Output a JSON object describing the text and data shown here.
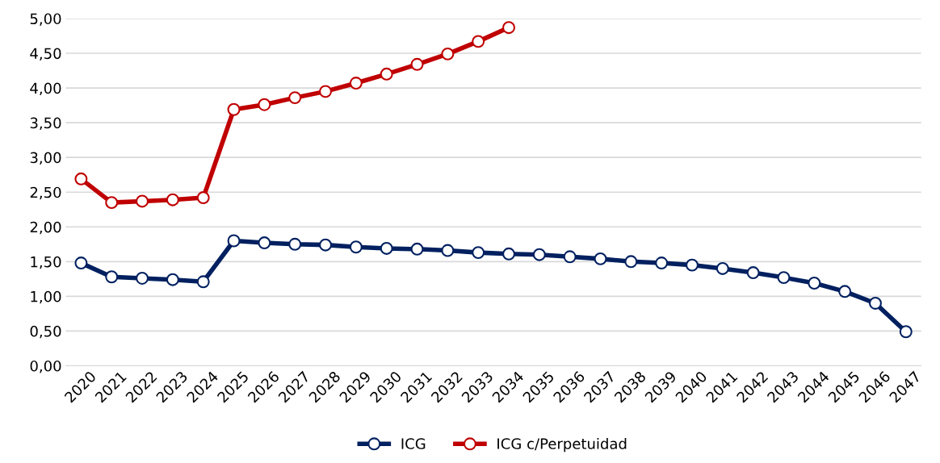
{
  "chart_data": {
    "type": "line",
    "categories": [
      "2020",
      "2021",
      "2022",
      "2023",
      "2024",
      "2025",
      "2026",
      "2027",
      "2028",
      "2029",
      "2030",
      "2031",
      "2032",
      "2033",
      "2034",
      "2035",
      "2036",
      "2037",
      "2038",
      "2039",
      "2040",
      "2041",
      "2042",
      "2043",
      "2044",
      "2045",
      "2046",
      "2047"
    ],
    "series": [
      {
        "name": "ICG",
        "color": "#002060",
        "values": [
          1.48,
          1.28,
          1.26,
          1.24,
          1.21,
          1.8,
          1.77,
          1.75,
          1.74,
          1.71,
          1.69,
          1.68,
          1.66,
          1.63,
          1.61,
          1.6,
          1.57,
          1.54,
          1.5,
          1.48,
          1.45,
          1.4,
          1.34,
          1.27,
          1.19,
          1.07,
          0.9,
          0.49
        ]
      },
      {
        "name": "ICG c/Perpetuidad",
        "color": "#c00000",
        "values": [
          2.69,
          2.35,
          2.37,
          2.39,
          2.42,
          3.69,
          3.76,
          3.86,
          3.95,
          4.07,
          4.2,
          4.34,
          4.49,
          4.67,
          4.87,
          null,
          null,
          null,
          null,
          null,
          null,
          null,
          null,
          null,
          null,
          null,
          null,
          null
        ]
      }
    ],
    "ylim": [
      0,
      5
    ],
    "yticks": [
      {
        "value": 0,
        "label": "0,00"
      },
      {
        "value": 0.5,
        "label": "0,50"
      },
      {
        "value": 1,
        "label": "1,00"
      },
      {
        "value": 1.5,
        "label": "1,50"
      },
      {
        "value": 2,
        "label": "2,00"
      },
      {
        "value": 2.5,
        "label": "2,50"
      },
      {
        "value": 3,
        "label": "3,00"
      },
      {
        "value": 3.5,
        "label": "3,50"
      },
      {
        "value": 4,
        "label": "4,00"
      },
      {
        "value": 4.5,
        "label": "4,50"
      },
      {
        "value": 5,
        "label": "5,00"
      }
    ],
    "grid": "y",
    "legend": "bottom",
    "marker": "circle",
    "line_style": "solid"
  }
}
